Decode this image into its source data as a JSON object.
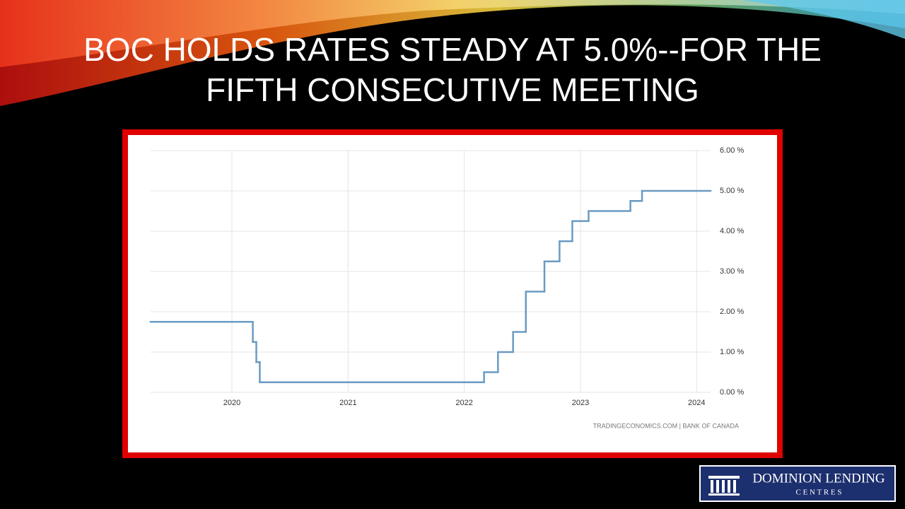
{
  "title": "BOC HOLDS RATES STEADY AT 5.0%--FOR THE FIFTH CONSECUTIVE MEETING",
  "chart_data": {
    "type": "step",
    "x": [
      2019.3,
      2020.18,
      2020.21,
      2020.24,
      2022.17,
      2022.29,
      2022.42,
      2022.53,
      2022.69,
      2022.82,
      2022.93,
      2023.07,
      2023.43,
      2023.53
    ],
    "series": [
      {
        "color": "#6a9bc3",
        "values": [
          1.75,
          1.25,
          0.75,
          0.25,
          0.5,
          1.0,
          1.5,
          2.5,
          3.25,
          3.75,
          4.25,
          4.5,
          4.75,
          5.0
        ]
      }
    ],
    "xlim": [
      2019.3,
      2024.12
    ],
    "xticks": [
      2020,
      2021,
      2022,
      2023,
      2024
    ],
    "ylim": [
      0,
      6
    ],
    "yticks": [
      {
        "value": 0,
        "label": "0.00 %"
      },
      {
        "value": 1,
        "label": "1.00 %"
      },
      {
        "value": 2,
        "label": "2.00 %"
      },
      {
        "value": 3,
        "label": "3.00 %"
      },
      {
        "value": 4,
        "label": "4.00 %"
      },
      {
        "value": 5,
        "label": "5.00 %"
      },
      {
        "value": 6,
        "label": "6.00 %"
      }
    ],
    "grid": true,
    "source": "TRADINGECONOMICS.COM | BANK OF CANADA"
  },
  "logo": {
    "line1": "DOMINION LENDING",
    "line2": "C E N T R E S"
  }
}
